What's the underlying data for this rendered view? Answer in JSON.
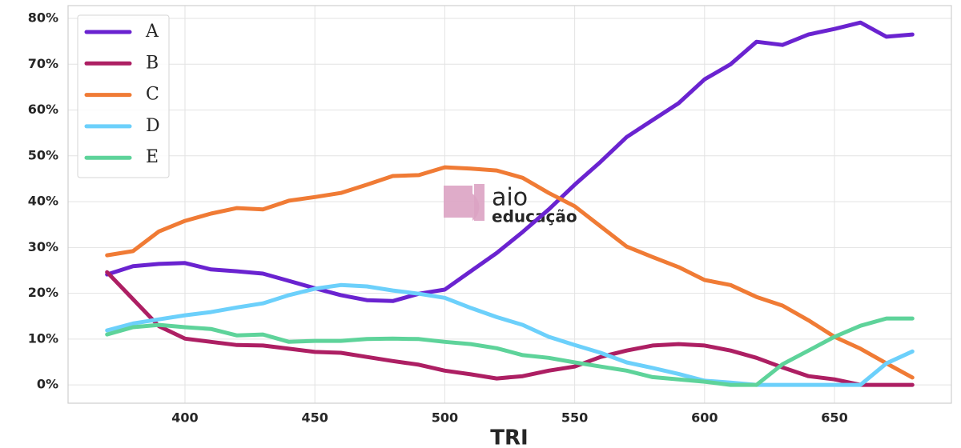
{
  "chart_data": {
    "type": "line",
    "x_label": "TRI",
    "x": [
      370,
      380,
      390,
      400,
      410,
      420,
      430,
      440,
      450,
      460,
      470,
      480,
      490,
      500,
      510,
      520,
      530,
      540,
      550,
      560,
      570,
      580,
      590,
      600,
      610,
      620,
      630,
      640,
      650,
      660,
      670,
      680
    ],
    "series": [
      {
        "name": "A",
        "color": "#6a23d0",
        "values": [
          24.1,
          25.9,
          26.4,
          26.6,
          25.2,
          24.8,
          24.3,
          22.7,
          21.1,
          19.6,
          18.5,
          18.3,
          19.9,
          20.8,
          24.8,
          28.8,
          33.4,
          38.3,
          43.7,
          48.7,
          54.1,
          57.8,
          61.5,
          66.7,
          70.0,
          74.9,
          74.2,
          76.5,
          77.7,
          79.1,
          76.0,
          76.5
        ]
      },
      {
        "name": "B",
        "color": "#ad1f63",
        "values": [
          24.6,
          18.7,
          12.8,
          10.1,
          9.4,
          8.7,
          8.6,
          7.9,
          7.2,
          7.0,
          6.1,
          5.2,
          4.4,
          3.1,
          2.3,
          1.4,
          1.9,
          3.1,
          4.0,
          6.1,
          7.5,
          8.6,
          8.9,
          8.6,
          7.5,
          5.9,
          3.8,
          1.9,
          1.2,
          0,
          0,
          0
        ]
      },
      {
        "name": "C",
        "color": "#f07b35",
        "values": [
          28.3,
          29.2,
          33.5,
          35.8,
          37.4,
          38.6,
          38.3,
          40.2,
          41.0,
          41.9,
          43.7,
          45.6,
          45.8,
          47.5,
          47.2,
          46.8,
          45.2,
          41.9,
          39.0,
          34.6,
          30.2,
          27.9,
          25.7,
          22.9,
          21.8,
          19.2,
          17.3,
          14.1,
          10.5,
          7.9,
          4.7,
          1.6
        ]
      },
      {
        "name": "D",
        "color": "#6cd0fb",
        "values": [
          11.9,
          13.4,
          14.3,
          15.2,
          15.9,
          16.9,
          17.8,
          19.6,
          21.0,
          21.8,
          21.5,
          20.6,
          19.9,
          19.0,
          16.8,
          14.8,
          13.1,
          10.5,
          8.7,
          7.0,
          4.9,
          3.7,
          2.4,
          0.9,
          0.5,
          0,
          0,
          0,
          0,
          0,
          4.7,
          7.3
        ]
      },
      {
        "name": "E",
        "color": "#5ed39a",
        "values": [
          11.0,
          12.6,
          13.1,
          12.6,
          12.2,
          10.8,
          11.0,
          9.4,
          9.6,
          9.6,
          10.0,
          10.1,
          10.0,
          9.4,
          8.9,
          8.0,
          6.5,
          5.9,
          4.9,
          4.0,
          3.1,
          1.7,
          1.2,
          0.7,
          0,
          0,
          4.5,
          7.5,
          10.5,
          12.9,
          14.5,
          14.5
        ]
      }
    ],
    "xlim": [
      355,
      695
    ],
    "ylim": [
      -4,
      82.8
    ],
    "xticks": [
      400,
      450,
      500,
      550,
      600,
      650
    ],
    "yticks": [
      {
        "value": 0,
        "label": "0%"
      },
      {
        "value": 10,
        "label": "10%"
      },
      {
        "value": 20,
        "label": "20%"
      },
      {
        "value": 30,
        "label": "30%"
      },
      {
        "value": 40,
        "label": "40%"
      },
      {
        "value": 50,
        "label": "50%"
      },
      {
        "value": 60,
        "label": "60%"
      },
      {
        "value": 70,
        "label": "70%"
      },
      {
        "value": 80,
        "label": "80%"
      }
    ],
    "grid": true,
    "legend": "upper left",
    "watermark": {
      "line1": "aio",
      "line2": "educação",
      "color": "#dba3c3"
    }
  }
}
